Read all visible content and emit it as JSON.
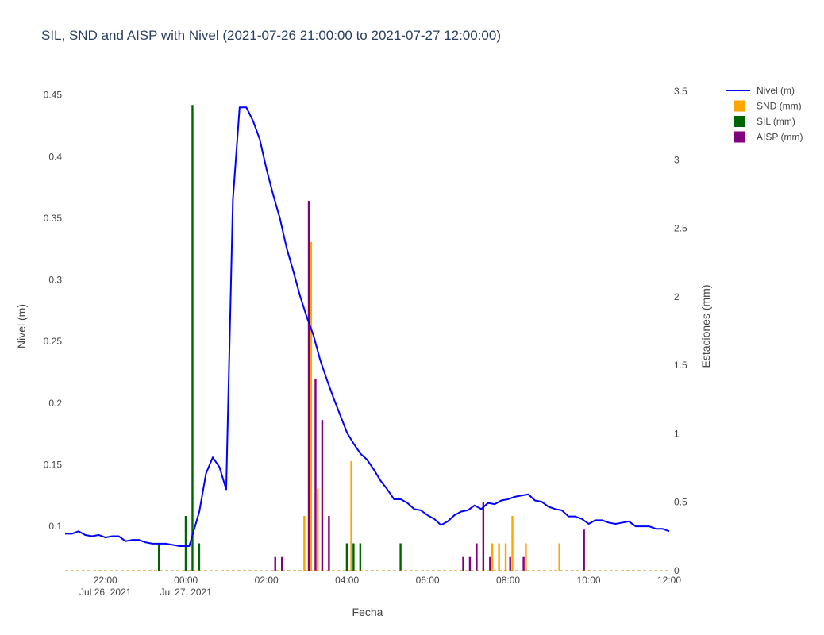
{
  "chart_data": {
    "type": "bar+line",
    "title": "SIL, SND and AISP with Nivel (2021-07-26 21:00:00 to 2021-07-27 12:00:00)",
    "xlabel": "Fecha",
    "ylabel_left": "Nivel (m)",
    "ylabel_right": "Estaciones (mm)",
    "x_range": [
      "2021-07-26 21:00",
      "2021-07-27 12:00"
    ],
    "y_left_range": [
      0.064,
      0.453
    ],
    "y_right_range": [
      0,
      3.5
    ],
    "x_ticks": [
      {
        "t": "2021-07-26 22:00",
        "label": "22:00",
        "sublabel": "Jul 26, 2021"
      },
      {
        "t": "2021-07-27 00:00",
        "label": "00:00",
        "sublabel": "Jul 27, 2021"
      },
      {
        "t": "2021-07-27 02:00",
        "label": "02:00",
        "sublabel": ""
      },
      {
        "t": "2021-07-27 04:00",
        "label": "04:00",
        "sublabel": ""
      },
      {
        "t": "2021-07-27 06:00",
        "label": "06:00",
        "sublabel": ""
      },
      {
        "t": "2021-07-27 08:00",
        "label": "08:00",
        "sublabel": ""
      },
      {
        "t": "2021-07-27 10:00",
        "label": "10:00",
        "sublabel": ""
      },
      {
        "t": "2021-07-27 12:00",
        "label": "12:00",
        "sublabel": ""
      }
    ],
    "y_left_ticks": [
      "0.1",
      "0.15",
      "0.2",
      "0.25",
      "0.3",
      "0.35",
      "0.4",
      "0.45"
    ],
    "y_right_ticks": [
      "0",
      "0.5",
      "1",
      "1.5",
      "2",
      "2.5",
      "3",
      "3.5"
    ],
    "legend_position": "top-right",
    "series": [
      {
        "name": "Nivel (m)",
        "type": "line",
        "axis": "left",
        "color": "#0000ff",
        "points": [
          [
            "2021-07-26 21:00",
            0.094
          ],
          [
            "2021-07-26 21:10",
            0.094
          ],
          [
            "2021-07-26 21:20",
            0.096
          ],
          [
            "2021-07-26 21:30",
            0.093
          ],
          [
            "2021-07-26 21:40",
            0.092
          ],
          [
            "2021-07-26 21:50",
            0.093
          ],
          [
            "2021-07-26 22:00",
            0.091
          ],
          [
            "2021-07-26 22:10",
            0.092
          ],
          [
            "2021-07-26 22:20",
            0.092
          ],
          [
            "2021-07-26 22:30",
            0.088
          ],
          [
            "2021-07-26 22:40",
            0.089
          ],
          [
            "2021-07-26 22:50",
            0.089
          ],
          [
            "2021-07-26 23:00",
            0.087
          ],
          [
            "2021-07-26 23:10",
            0.086
          ],
          [
            "2021-07-26 23:20",
            0.086
          ],
          [
            "2021-07-26 23:30",
            0.086
          ],
          [
            "2021-07-26 23:40",
            0.085
          ],
          [
            "2021-07-26 23:50",
            0.084
          ],
          [
            "2021-07-27 00:00",
            0.084
          ],
          [
            "2021-07-27 00:05",
            0.084
          ],
          [
            "2021-07-27 00:20",
            0.112
          ],
          [
            "2021-07-27 00:30",
            0.143
          ],
          [
            "2021-07-27 00:40",
            0.156
          ],
          [
            "2021-07-27 00:50",
            0.148
          ],
          [
            "2021-07-27 01:00",
            0.13
          ],
          [
            "2021-07-27 01:10",
            0.365
          ],
          [
            "2021-07-27 01:20",
            0.44
          ],
          [
            "2021-07-27 01:30",
            0.44
          ],
          [
            "2021-07-27 01:40",
            0.429
          ],
          [
            "2021-07-27 01:50",
            0.414
          ],
          [
            "2021-07-27 02:00",
            0.39
          ],
          [
            "2021-07-27 02:10",
            0.369
          ],
          [
            "2021-07-27 02:20",
            0.35
          ],
          [
            "2021-07-27 02:30",
            0.326
          ],
          [
            "2021-07-27 02:40",
            0.307
          ],
          [
            "2021-07-27 02:50",
            0.287
          ],
          [
            "2021-07-27 03:00",
            0.27
          ],
          [
            "2021-07-27 03:10",
            0.255
          ],
          [
            "2021-07-27 03:20",
            0.235
          ],
          [
            "2021-07-27 03:30",
            0.219
          ],
          [
            "2021-07-27 03:40",
            0.204
          ],
          [
            "2021-07-27 03:50",
            0.19
          ],
          [
            "2021-07-27 04:00",
            0.176
          ],
          [
            "2021-07-27 04:10",
            0.167
          ],
          [
            "2021-07-27 04:20",
            0.159
          ],
          [
            "2021-07-27 04:30",
            0.154
          ],
          [
            "2021-07-27 04:40",
            0.146
          ],
          [
            "2021-07-27 04:50",
            0.137
          ],
          [
            "2021-07-27 05:00",
            0.13
          ],
          [
            "2021-07-27 05:10",
            0.122
          ],
          [
            "2021-07-27 05:20",
            0.122
          ],
          [
            "2021-07-27 05:30",
            0.119
          ],
          [
            "2021-07-27 05:40",
            0.114
          ],
          [
            "2021-07-27 05:50",
            0.113
          ],
          [
            "2021-07-27 06:00",
            0.109
          ],
          [
            "2021-07-27 06:10",
            0.106
          ],
          [
            "2021-07-27 06:20",
            0.101
          ],
          [
            "2021-07-27 06:30",
            0.104
          ],
          [
            "2021-07-27 06:40",
            0.109
          ],
          [
            "2021-07-27 06:50",
            0.112
          ],
          [
            "2021-07-27 07:00",
            0.113
          ],
          [
            "2021-07-27 07:10",
            0.117
          ],
          [
            "2021-07-27 07:20",
            0.114
          ],
          [
            "2021-07-27 07:30",
            0.119
          ],
          [
            "2021-07-27 07:40",
            0.118
          ],
          [
            "2021-07-27 07:50",
            0.121
          ],
          [
            "2021-07-27 08:00",
            0.122
          ],
          [
            "2021-07-27 08:10",
            0.124
          ],
          [
            "2021-07-27 08:20",
            0.125
          ],
          [
            "2021-07-27 08:30",
            0.126
          ],
          [
            "2021-07-27 08:40",
            0.121
          ],
          [
            "2021-07-27 08:50",
            0.12
          ],
          [
            "2021-07-27 09:00",
            0.116
          ],
          [
            "2021-07-27 09:10",
            0.114
          ],
          [
            "2021-07-27 09:20",
            0.113
          ],
          [
            "2021-07-27 09:30",
            0.108
          ],
          [
            "2021-07-27 09:40",
            0.108
          ],
          [
            "2021-07-27 09:50",
            0.106
          ],
          [
            "2021-07-27 10:00",
            0.102
          ],
          [
            "2021-07-27 10:10",
            0.105
          ],
          [
            "2021-07-27 10:20",
            0.105
          ],
          [
            "2021-07-27 10:30",
            0.103
          ],
          [
            "2021-07-27 10:40",
            0.102
          ],
          [
            "2021-07-27 10:50",
            0.103
          ],
          [
            "2021-07-27 11:00",
            0.104
          ],
          [
            "2021-07-27 11:10",
            0.1
          ],
          [
            "2021-07-27 11:20",
            0.1
          ],
          [
            "2021-07-27 11:30",
            0.1
          ],
          [
            "2021-07-27 11:40",
            0.098
          ],
          [
            "2021-07-27 11:50",
            0.098
          ],
          [
            "2021-07-27 12:00",
            0.096
          ]
        ]
      },
      {
        "name": "SND (mm)",
        "type": "bar",
        "axis": "right",
        "color": "#ffa500",
        "points": [
          [
            "2021-07-27 03:00",
            0.4
          ],
          [
            "2021-07-27 03:10",
            2.4
          ],
          [
            "2021-07-27 03:20",
            0.6
          ],
          [
            "2021-07-27 04:10",
            0.8
          ],
          [
            "2021-07-27 07:40",
            0.2
          ],
          [
            "2021-07-27 07:50",
            0.2
          ],
          [
            "2021-07-27 08:00",
            0.2
          ],
          [
            "2021-07-27 08:10",
            0.4
          ],
          [
            "2021-07-27 08:30",
            0.2
          ],
          [
            "2021-07-27 09:20",
            0.2
          ]
        ]
      },
      {
        "name": "SIL (mm)",
        "type": "bar",
        "axis": "right",
        "color": "#006400",
        "points": [
          [
            "2021-07-26 23:20",
            0.2
          ],
          [
            "2021-07-27 00:00",
            0.4
          ],
          [
            "2021-07-27 00:10",
            3.4
          ],
          [
            "2021-07-27 00:20",
            0.2
          ],
          [
            "2021-07-27 04:00",
            0.2
          ],
          [
            "2021-07-27 04:10",
            0.2
          ],
          [
            "2021-07-27 04:20",
            0.2
          ],
          [
            "2021-07-27 05:20",
            0.2
          ]
        ]
      },
      {
        "name": "AISP (mm)",
        "type": "bar",
        "axis": "right",
        "color": "#800080",
        "points": [
          [
            "2021-07-27 02:10",
            0.1
          ],
          [
            "2021-07-27 02:20",
            0.1
          ],
          [
            "2021-07-27 03:00",
            2.7
          ],
          [
            "2021-07-27 03:10",
            1.4
          ],
          [
            "2021-07-27 03:20",
            1.1
          ],
          [
            "2021-07-27 03:30",
            0.4
          ],
          [
            "2021-07-27 06:50",
            0.1
          ],
          [
            "2021-07-27 07:00",
            0.1
          ],
          [
            "2021-07-27 07:10",
            0.2
          ],
          [
            "2021-07-27 07:20",
            0.5
          ],
          [
            "2021-07-27 07:30",
            0.1
          ],
          [
            "2021-07-27 08:00",
            0.1
          ],
          [
            "2021-07-27 08:20",
            0.1
          ],
          [
            "2021-07-27 09:50",
            0.3
          ]
        ]
      }
    ]
  }
}
